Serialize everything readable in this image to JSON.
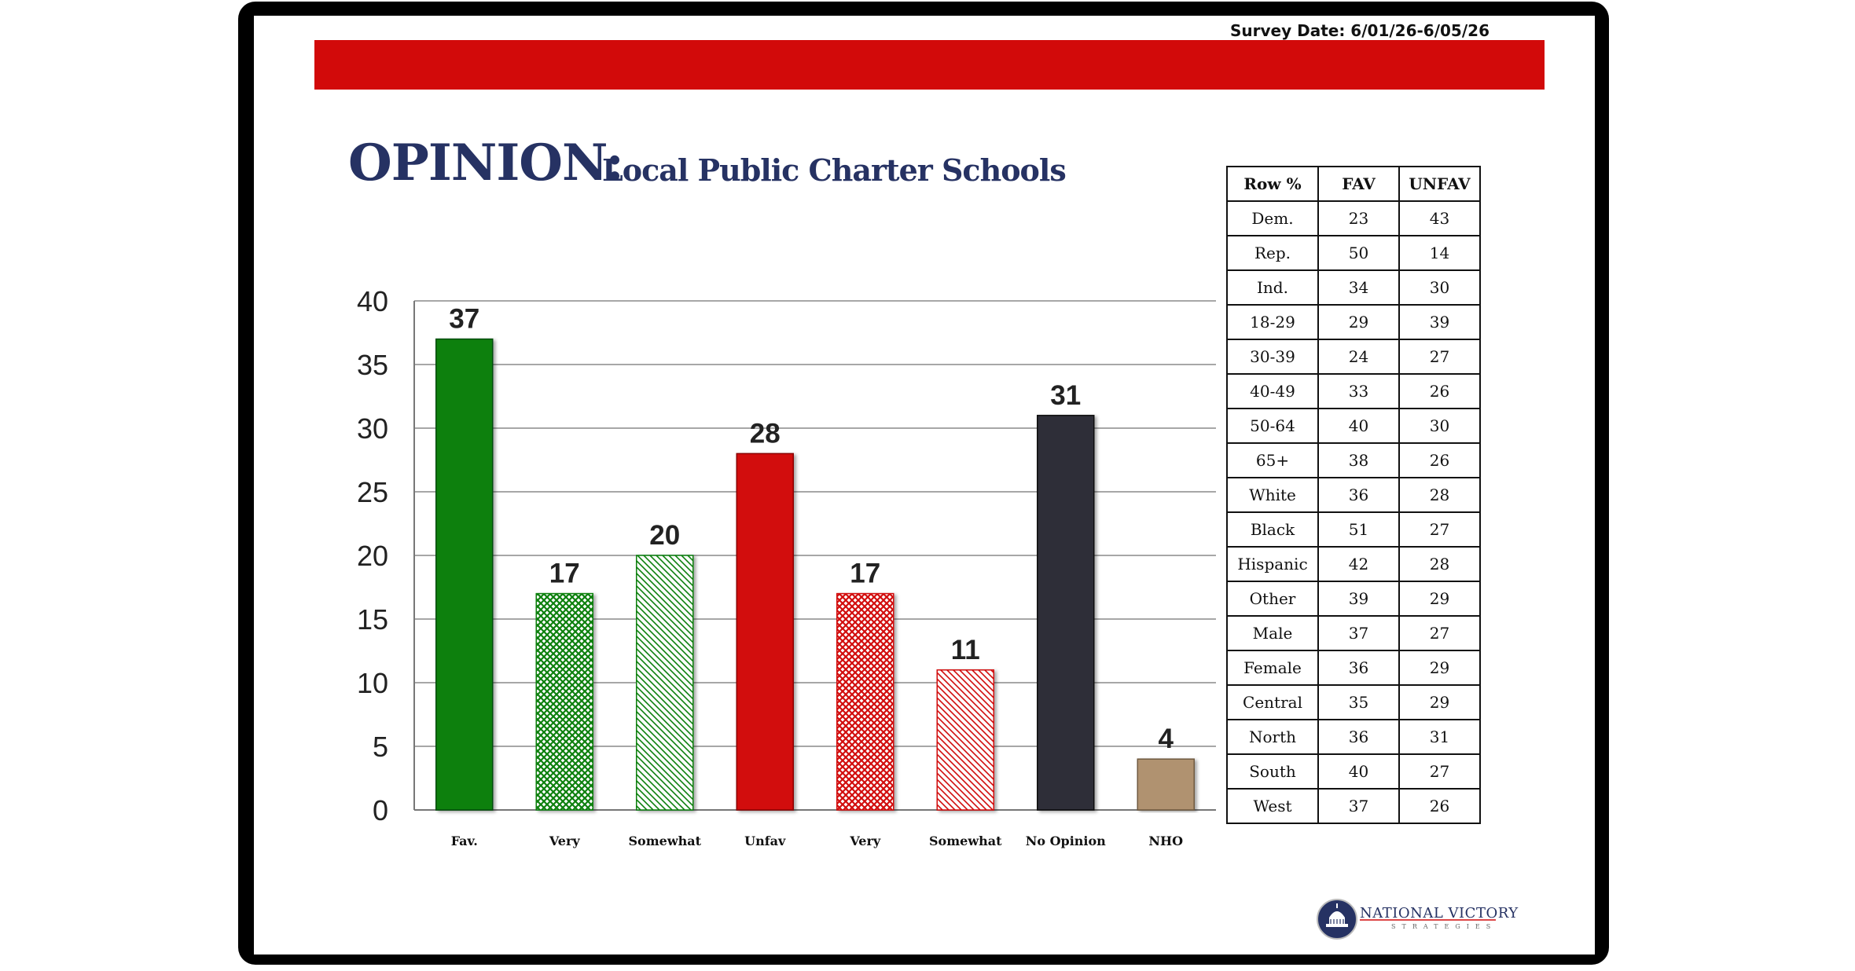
{
  "survey_date": "Survey Date: 6/01/26-6/05/26",
  "title": "OPINION:",
  "subtitle": "Local Public Charter Schools",
  "colors": {
    "brand_red": "#d20a0a",
    "title_navy": "#263263",
    "fav_green": "#0b8010",
    "unfav_red": "#d20a0a",
    "no_opinion": "#2d2d38",
    "nho": "#b09270"
  },
  "chart_data": {
    "type": "bar",
    "title": "",
    "xlabel": "",
    "ylabel": "",
    "ylim": [
      0,
      40
    ],
    "yticks": [
      0,
      5,
      10,
      15,
      20,
      25,
      30,
      35,
      40
    ],
    "grid": true,
    "categories": [
      "Fav.",
      "Very",
      "Somewhat",
      "Unfav",
      "Very",
      "Somewhat",
      "No Opinion",
      "NHO"
    ],
    "values": [
      37,
      17,
      20,
      28,
      17,
      11,
      31,
      4
    ],
    "bar_styles": [
      "solid-green",
      "crosshatch-green",
      "diagonal-green",
      "solid-red",
      "crosshatch-red",
      "diagonal-red",
      "solid-dark",
      "solid-tan"
    ]
  },
  "table": {
    "headers": [
      "Row %",
      "FAV",
      "UNFAV"
    ],
    "rows": [
      [
        "Dem.",
        "23",
        "43"
      ],
      [
        "Rep.",
        "50",
        "14"
      ],
      [
        "Ind.",
        "34",
        "30"
      ],
      [
        "18-29",
        "29",
        "39"
      ],
      [
        "30-39",
        "24",
        "27"
      ],
      [
        "40-49",
        "33",
        "26"
      ],
      [
        "50-64",
        "40",
        "30"
      ],
      [
        "65+",
        "38",
        "26"
      ],
      [
        "White",
        "36",
        "28"
      ],
      [
        "Black",
        "51",
        "27"
      ],
      [
        "Hispanic",
        "42",
        "28"
      ],
      [
        "Other",
        "39",
        "29"
      ],
      [
        "Male",
        "37",
        "27"
      ],
      [
        "Female",
        "36",
        "29"
      ],
      [
        "Central",
        "35",
        "29"
      ],
      [
        "North",
        "36",
        "31"
      ],
      [
        "South",
        "40",
        "27"
      ],
      [
        "West",
        "37",
        "26"
      ]
    ]
  },
  "logo": {
    "name": "NATIONAL VICTORY",
    "tagline": "STRATEGIES"
  }
}
